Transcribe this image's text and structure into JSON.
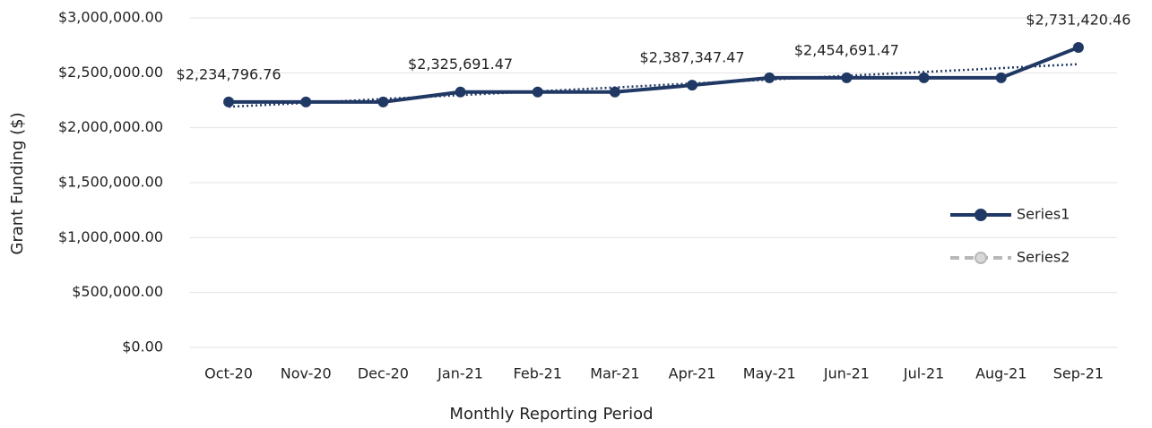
{
  "chart_data": {
    "type": "line",
    "x_label": "Monthly Reporting Period",
    "y_label": "Grant Funding ($)",
    "categories": [
      "Oct-20",
      "Nov-20",
      "Dec-20",
      "Jan-21",
      "Feb-21",
      "Mar-21",
      "Apr-21",
      "May-21",
      "Jun-21",
      "Jul-21",
      "Aug-21",
      "Sep-21"
    ],
    "series": [
      {
        "name": "Series1",
        "color": "#203864",
        "values": [
          2234796.76,
          2234796.76,
          2234796.76,
          2325691.47,
          2325691.47,
          2325691.47,
          2387347.47,
          2454691.47,
          2454691.47,
          2454691.47,
          2454691.47,
          2731420.46
        ],
        "value_labels": [
          "$2,234,796.76",
          null,
          null,
          "$2,325,691.47",
          null,
          null,
          "$2,387,347.47",
          null,
          "$2,454,691.47",
          null,
          null,
          "$2,731,420.46"
        ]
      },
      {
        "name": "Series2",
        "color": "#b8b8b8"
      }
    ],
    "trendline": {
      "color": "#203864",
      "values": [
        2191000,
        2226000,
        2262000,
        2297000,
        2332000,
        2367000,
        2403000,
        2438000,
        2473000,
        2508000,
        2543000,
        2579000
      ]
    },
    "ylim": [
      0,
      3000000
    ],
    "yticks": [
      {
        "value": 0,
        "label": "$0.00"
      },
      {
        "value": 500000,
        "label": "$500,000.00"
      },
      {
        "value": 1000000,
        "label": "$1,000,000.00"
      },
      {
        "value": 1500000,
        "label": "$1,500,000.00"
      },
      {
        "value": 2000000,
        "label": "$2,000,000.00"
      },
      {
        "value": 2500000,
        "label": "$2,500,000.00"
      },
      {
        "value": 3000000,
        "label": "$3,000,000.00"
      }
    ],
    "grid": true,
    "legend": "right"
  }
}
